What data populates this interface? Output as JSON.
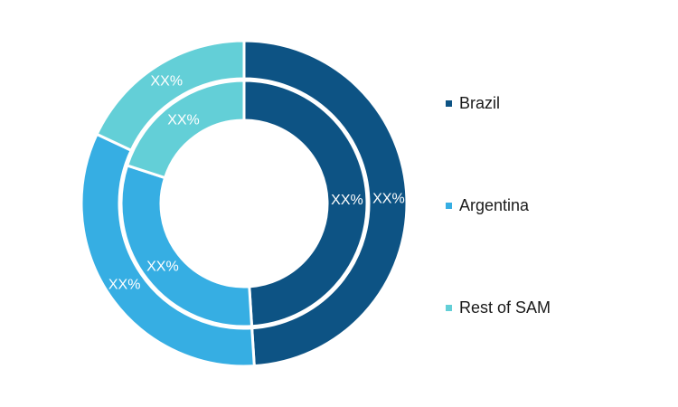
{
  "chart_data": {
    "type": "pie",
    "categories": [
      "Brazil",
      "Argentina",
      "Rest of SAM"
    ],
    "colors": [
      "#0d5384",
      "#36aee3",
      "#63cfd7"
    ],
    "series": [
      {
        "ring": "outer",
        "values": [
          49,
          33,
          18
        ],
        "data_labels": [
          "XX%",
          "XX%",
          "XX%"
        ]
      },
      {
        "ring": "inner",
        "values": [
          49,
          31,
          20
        ],
        "data_labels": [
          "XX%",
          "XX%",
          "XX%"
        ]
      }
    ],
    "legend": {
      "position": "right",
      "entries": [
        "Brazil",
        "Argentina",
        "Rest of SAM"
      ]
    }
  }
}
